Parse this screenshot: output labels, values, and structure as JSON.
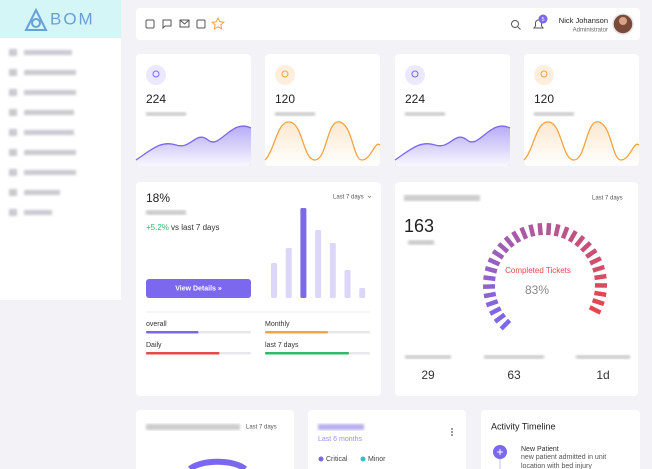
{
  "logo": "BOM",
  "user": {
    "name": "Nick Johanson",
    "role": "Administrator",
    "notifications": "5"
  },
  "stats": [
    {
      "value": "224"
    },
    {
      "value": "120"
    },
    {
      "value": "224"
    },
    {
      "value": "120"
    }
  ],
  "overview": {
    "percent": "18%",
    "change": "+5.2%",
    "change_text": "vs last 7 days",
    "period": "Last 7 days",
    "button": "View Details »",
    "bars": [
      35,
      50,
      90,
      68,
      55,
      28,
      10
    ],
    "progress": [
      {
        "label": "overall",
        "value": 50,
        "color": "#7b68ee"
      },
      {
        "label": "Monthly",
        "value": 60,
        "color": "#f4a340"
      },
      {
        "label": "Daily",
        "value": 70,
        "color": "#e5474b"
      },
      {
        "label": "last 7 days",
        "value": 80,
        "color": "#2fb969"
      }
    ]
  },
  "heart": {
    "period": "Last 7 days",
    "count": "163",
    "gauge_label": "Completed Tickets",
    "gauge_value": "83%",
    "stats": [
      "29",
      "63",
      "1d"
    ]
  },
  "treatments": {
    "period": "Last 7 days"
  },
  "surgeries": {
    "subtitle": "Last 6 months",
    "legend": [
      "Critical",
      "Minor"
    ]
  },
  "timeline": {
    "title": "Activity Timeline",
    "items": [
      {
        "title": "New Patient",
        "text": "new patient admitted in unit location with bed injury"
      }
    ]
  }
}
